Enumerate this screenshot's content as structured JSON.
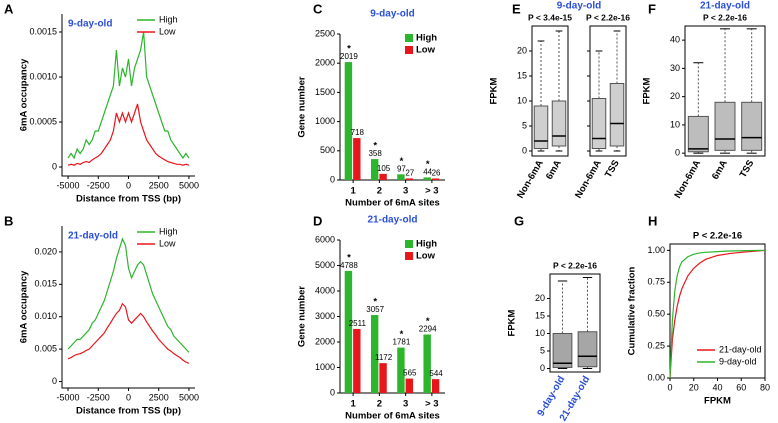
{
  "chart_data": [
    {
      "type": "line",
      "panel": "A",
      "annotation": "9-day-old",
      "xlabel": "Distance from TSS (bp)",
      "ylabel": "6mA occupancy",
      "x": [
        -5000,
        -4750,
        -4500,
        -4250,
        -4000,
        -3750,
        -3500,
        -3250,
        -3000,
        -2750,
        -2500,
        -2250,
        -2000,
        -1750,
        -1500,
        -1250,
        -1000,
        -750,
        -500,
        -250,
        0,
        250,
        500,
        750,
        1000,
        1250,
        1500,
        1750,
        2000,
        2250,
        2500,
        2750,
        3000,
        3250,
        3500,
        3750,
        4000,
        4250,
        4500,
        4750,
        5000
      ],
      "series": [
        {
          "name": "High",
          "color": "#2db52d",
          "values": [
            0.0001,
            0.00015,
            0.0001,
            0.0002,
            0.00015,
            0.0002,
            0.0003,
            0.00025,
            0.0003,
            0.0004,
            0.0004,
            0.0005,
            0.0006,
            0.0007,
            0.0008,
            0.0009,
            0.0013,
            0.0009,
            0.0011,
            0.001,
            0.0012,
            0.0009,
            0.0011,
            0.0012,
            0.0013,
            0.0015,
            0.001,
            0.0009,
            0.0008,
            0.0007,
            0.0006,
            0.0005,
            0.0004,
            0.0004,
            0.0003,
            0.00025,
            0.0002,
            0.00015,
            0.0001,
            0.00015,
            0.0001
          ]
        },
        {
          "name": "Low",
          "color": "#e8161b",
          "values": [
            2e-05,
            3e-05,
            2e-05,
            4e-05,
            3e-05,
            5e-05,
            6e-05,
            5e-05,
            8e-05,
            0.0001,
            0.00012,
            0.00015,
            0.0002,
            0.00025,
            0.0003,
            0.0004,
            0.0006,
            0.0005,
            0.0006,
            0.0005,
            0.0006,
            0.0005,
            0.0006,
            0.0007,
            0.0005,
            0.0004,
            0.0003,
            0.00025,
            0.0002,
            0.00015,
            0.00012,
            0.0001,
            8e-05,
            6e-05,
            5e-05,
            4e-05,
            3e-05,
            3e-05,
            2e-05,
            3e-05,
            2e-05
          ]
        }
      ],
      "xlim": [
        -5500,
        5500
      ],
      "xticks": [
        -5000,
        -2500,
        0,
        2500,
        5000
      ],
      "ylim": [
        -0.0001,
        0.0017
      ],
      "yticks": [
        0,
        0.0005,
        {
          "value": 0.001,
          "label": "0.0010"
        },
        0.0015
      ]
    },
    {
      "type": "line",
      "panel": "B",
      "annotation": "21-day-old",
      "xlabel": "Distance from TSS (bp)",
      "ylabel": "6mA occupancy",
      "x": [
        -5000,
        -4750,
        -4500,
        -4250,
        -4000,
        -3750,
        -3500,
        -3250,
        -3000,
        -2750,
        -2500,
        -2250,
        -2000,
        -1750,
        -1500,
        -1250,
        -1000,
        -750,
        -500,
        -250,
        0,
        250,
        500,
        750,
        1000,
        1250,
        1500,
        1750,
        2000,
        2250,
        2500,
        2750,
        3000,
        3250,
        3500,
        3750,
        4000,
        4250,
        4500,
        4750,
        5000
      ],
      "series": [
        {
          "name": "High",
          "color": "#2db52d",
          "values": [
            0.005,
            0.0055,
            0.006,
            0.0065,
            0.0065,
            0.007,
            0.0075,
            0.008,
            0.009,
            0.0095,
            0.0105,
            0.0115,
            0.0125,
            0.014,
            0.0155,
            0.017,
            0.019,
            0.0205,
            0.022,
            0.021,
            0.0175,
            0.016,
            0.017,
            0.018,
            0.0185,
            0.018,
            0.0165,
            0.015,
            0.0135,
            0.0125,
            0.0115,
            0.0105,
            0.0095,
            0.0085,
            0.008,
            0.007,
            0.0065,
            0.006,
            0.0055,
            0.005,
            0.0045
          ]
        },
        {
          "name": "Low",
          "color": "#e8161b",
          "values": [
            0.0035,
            0.0037,
            0.004,
            0.0042,
            0.0043,
            0.0045,
            0.0048,
            0.005,
            0.0055,
            0.006,
            0.0065,
            0.007,
            0.0075,
            0.0083,
            0.009,
            0.0098,
            0.0105,
            0.011,
            0.012,
            0.0115,
            0.0095,
            0.009,
            0.0095,
            0.01,
            0.0105,
            0.01,
            0.0092,
            0.0085,
            0.0078,
            0.0072,
            0.0065,
            0.006,
            0.0055,
            0.005,
            0.0047,
            0.0043,
            0.004,
            0.0037,
            0.0033,
            0.003,
            0.0028
          ]
        }
      ],
      "xlim": [
        -5500,
        5500
      ],
      "xticks": [
        -5000,
        -2500,
        0,
        2500,
        5000
      ],
      "ylim": [
        -0.001,
        0.024
      ],
      "yticks": [
        0,
        0.005,
        {
          "value": 0.01,
          "label": "0.010"
        },
        0.015,
        {
          "value": 0.02,
          "label": "0.020"
        }
      ]
    },
    {
      "type": "bar",
      "panel": "C",
      "title": "9-day-old",
      "xlabel": "Number of 6mA sites",
      "ylabel": "Gene number",
      "categories": [
        "1",
        "2",
        "3",
        "> 3"
      ],
      "markers": [
        "*",
        "*",
        "*",
        "*"
      ],
      "series": [
        {
          "name": "High",
          "color": "#2db52d",
          "values": [
            2019,
            358,
            97,
            44
          ]
        },
        {
          "name": "Low",
          "color": "#e8161b",
          "values": [
            718,
            105,
            27,
            26
          ]
        }
      ],
      "ylim": [
        0,
        2500
      ],
      "yticks": [
        0,
        500,
        1000,
        1500,
        2000,
        2500
      ]
    },
    {
      "type": "bar",
      "panel": "D",
      "title": "21-day-old",
      "xlabel": "Number of 6mA sites",
      "ylabel": "Gene number",
      "categories": [
        "1",
        "2",
        "3",
        "> 3"
      ],
      "markers": [
        "*",
        "*",
        "*",
        "*"
      ],
      "series": [
        {
          "name": "High",
          "color": "#2db52d",
          "values": [
            4788,
            3057,
            1781,
            2294
          ]
        },
        {
          "name": "Low",
          "color": "#e8161b",
          "values": [
            2511,
            1172,
            565,
            544
          ]
        }
      ],
      "ylim": [
        0,
        6000
      ],
      "yticks": [
        0,
        1000,
        2000,
        3000,
        4000,
        5000,
        6000
      ]
    },
    {
      "type": "box",
      "panel": "E",
      "title": "9-day-old",
      "ylabel": "FPKM",
      "color": "#cfcfcf",
      "ylim": [
        -1,
        25
      ],
      "yticks": [
        0,
        5,
        10,
        15,
        20
      ],
      "groups": [
        {
          "p_value": "P < 3.4e-15",
          "boxes": [
            {
              "label": "Non-6mA",
              "low": 0,
              "q1": 0.5,
              "median": 2,
              "q3": 9,
              "high": 22
            },
            {
              "label": "6mA",
              "low": 0,
              "q1": 1,
              "median": 3,
              "q3": 10,
              "high": 24
            }
          ]
        },
        {
          "p_value": "P < 2.2e-16",
          "boxes": [
            {
              "label": "Non-6mA",
              "low": 0,
              "q1": 0.5,
              "median": 2.5,
              "q3": 10.5,
              "high": 20
            },
            {
              "label": "TSS",
              "low": 0,
              "q1": 1,
              "median": 5.5,
              "q3": 13.5,
              "high": 24
            }
          ]
        }
      ]
    },
    {
      "type": "box",
      "panel": "F",
      "title": "21-day-old",
      "ylabel": "FPKM",
      "color": "#bdbdbd",
      "ylim": [
        -1,
        45
      ],
      "yticks": [
        0,
        10,
        20,
        30,
        40
      ],
      "groups": [
        {
          "p_value": "P < 2.2e-16",
          "boxes": [
            {
              "label": "Non-6mA",
              "low": 0,
              "q1": 0.5,
              "median": 1.5,
              "q3": 13,
              "high": 32
            },
            {
              "label": "6mA",
              "low": 0,
              "q1": 1,
              "median": 5,
              "q3": 18,
              "high": 44
            },
            {
              "label": "TSS",
              "low": 0,
              "q1": 1,
              "median": 5.5,
              "q3": 18,
              "high": 44
            }
          ]
        }
      ]
    },
    {
      "type": "box",
      "panel": "G",
      "ylabel": "FPKM",
      "color": "#a6a6a6",
      "ylim": [
        -1,
        27
      ],
      "yticks": [
        0,
        5,
        10,
        15,
        20
      ],
      "groups": [
        {
          "p_value": "P < 2.2e-16",
          "boxes": [
            {
              "label": "9-day-old",
              "low": 0,
              "q1": 0.3,
              "median": 1.5,
              "q3": 10,
              "high": 25
            },
            {
              "label": "21-day-old",
              "low": 0,
              "q1": 0.5,
              "median": 3.5,
              "q3": 10.5,
              "high": 26
            }
          ]
        }
      ]
    },
    {
      "type": "cdf",
      "panel": "H",
      "annotation": "P < 2.2e-16",
      "xlabel": "FPKM",
      "ylabel": "Cumulative fraction",
      "x": [
        0,
        2,
        4,
        6,
        8,
        10,
        15,
        20,
        25,
        30,
        40,
        50,
        60,
        80
      ],
      "series": [
        {
          "name": "21-day-old",
          "color": "#e8161b",
          "values": [
            0,
            0.3,
            0.45,
            0.56,
            0.64,
            0.7,
            0.8,
            0.86,
            0.9,
            0.93,
            0.96,
            0.975,
            0.985,
            1
          ]
        },
        {
          "name": "9-day-old",
          "color": "#2db52d",
          "values": [
            0,
            0.45,
            0.68,
            0.8,
            0.87,
            0.91,
            0.95,
            0.97,
            0.98,
            0.985,
            0.99,
            0.995,
            0.997,
            1
          ]
        }
      ],
      "xlim": [
        0,
        80
      ],
      "xticks": [
        0,
        20,
        40,
        60,
        80
      ],
      "ylim": [
        0,
        1.05
      ],
      "yticks": [
        {
          "value": 0,
          "label": "0.00"
        },
        {
          "value": 0.25,
          "label": "0.25"
        },
        {
          "value": 0.5,
          "label": "0.50"
        },
        {
          "value": 0.75,
          "label": "0.75"
        },
        {
          "value": 1,
          "label": "1.00"
        }
      ]
    }
  ]
}
